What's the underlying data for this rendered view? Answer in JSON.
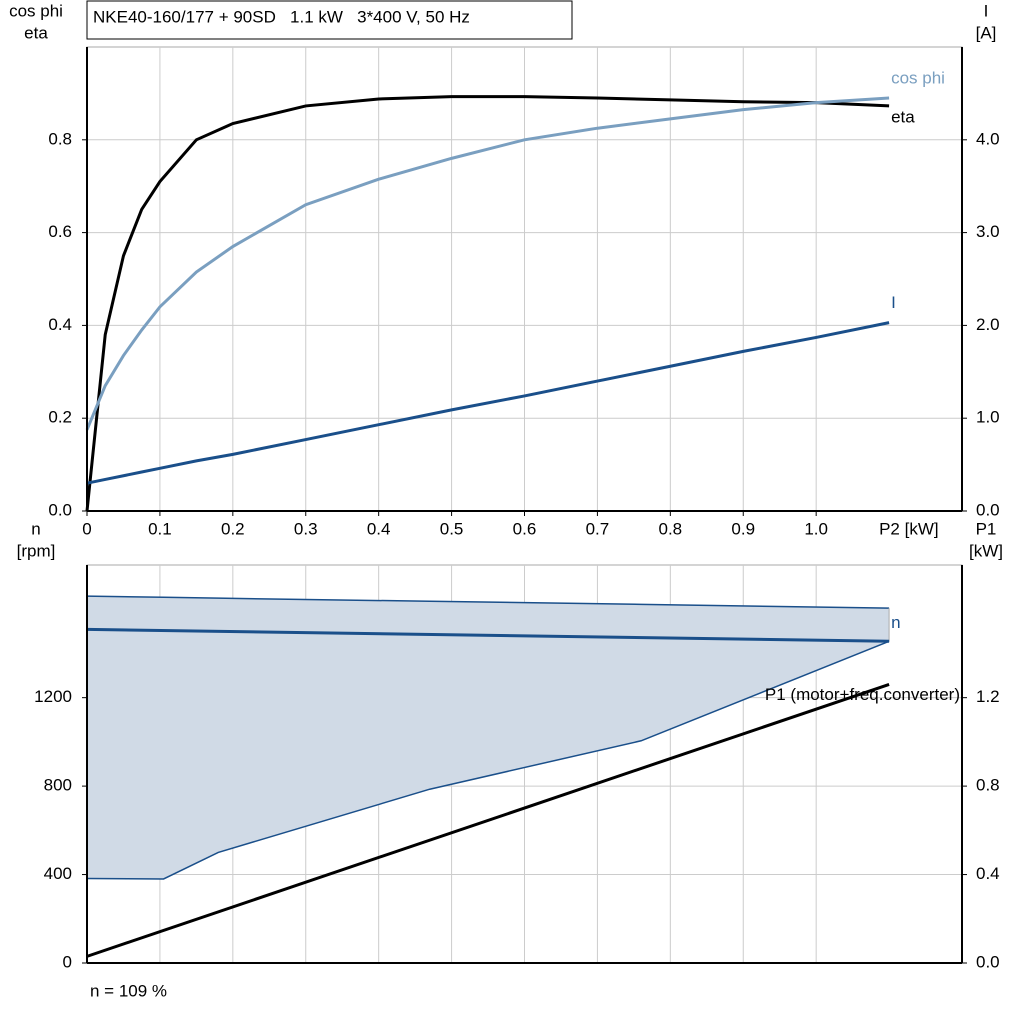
{
  "chart_data": [
    {
      "type": "line",
      "title": "NKE40-160/177 + 90SD   1.1 kW   3*400 V, 50 Hz",
      "ylabel": [
        "cos phi",
        "eta"
      ],
      "y2label": [
        "I",
        "[A]"
      ],
      "xlabel": "P2 [kW]",
      "x": [
        0,
        0.025,
        0.05,
        0.075,
        0.1,
        0.15,
        0.2,
        0.3,
        0.4,
        0.5,
        0.6,
        0.7,
        0.8,
        0.9,
        1.0,
        1.1
      ],
      "series": [
        {
          "name": "eta",
          "color": "#000000",
          "values": [
            0,
            0.38,
            0.55,
            0.65,
            0.71,
            0.8,
            0.835,
            0.873,
            0.888,
            0.893,
            0.893,
            0.89,
            0.886,
            0.882,
            0.88,
            0.873
          ]
        },
        {
          "name": "cos phi",
          "color": "#7a9fc0",
          "values": [
            0.175,
            0.27,
            0.335,
            0.39,
            0.44,
            0.515,
            0.57,
            0.66,
            0.715,
            0.76,
            0.8,
            0.825,
            0.845,
            0.865,
            0.88,
            0.89
          ]
        },
        {
          "name": "I",
          "color": "#1a4f8a",
          "axis": "y2",
          "values": [
            0.3,
            0.34,
            0.38,
            0.42,
            0.46,
            0.54,
            0.61,
            0.77,
            0.93,
            1.09,
            1.24,
            1.4,
            1.56,
            1.72,
            1.87,
            2.03
          ]
        }
      ],
      "xlim": [
        0,
        1.2
      ],
      "xticks": [
        0,
        0.1,
        0.2,
        0.3,
        0.4,
        0.5,
        0.6,
        0.7,
        0.8,
        0.9,
        {
          "value": 1,
          "label": "1.0"
        }
      ],
      "ylim": [
        0,
        1.0
      ],
      "yticks": [
        {
          "value": 0,
          "label": "0.0"
        },
        0.2,
        0.4,
        0.6,
        0.8
      ],
      "y2lim": [
        0,
        5.0
      ],
      "y2ticks": [
        {
          "value": 0,
          "label": "0.0"
        },
        {
          "value": 1,
          "label": "1.0"
        },
        {
          "value": 2,
          "label": "2.0"
        },
        {
          "value": 3,
          "label": "3.0"
        },
        {
          "value": 4,
          "label": "4.0"
        }
      ],
      "grid": true
    },
    {
      "type": "line",
      "ylabel": [
        "n",
        "[rpm]"
      ],
      "y2label": [
        "P1",
        "[kW]"
      ],
      "note": "n = 109 %",
      "band": {
        "color": "#d0dae6",
        "edge": "#1a4f8a",
        "x": [
          0,
          0.105,
          0.18,
          0.47,
          0.76,
          1.1
        ],
        "upper": [
          1659,
          1654,
          1650,
          1636,
          1622,
          1605
        ],
        "lower": [
          382,
          380,
          500,
          786,
          1005,
          1455
        ]
      },
      "series": [
        {
          "name": "n",
          "color": "#1a4f8a",
          "x": [
            0,
            1.1
          ],
          "values": [
            1509,
            1455
          ]
        },
        {
          "name": "P1 (motor+freq.converter)",
          "color": "#000000",
          "axis": "y2",
          "x": [
            0,
            1.1
          ],
          "values": [
            0.03,
            1.26
          ]
        }
      ],
      "xlim": [
        0,
        1.2
      ],
      "ylim": [
        0,
        1800
      ],
      "yticks": [
        0,
        400,
        800,
        1200
      ],
      "y2lim": [
        0,
        1.8
      ],
      "y2ticks": [
        {
          "value": 0,
          "label": "0.0"
        },
        {
          "value": 0.4,
          "label": "0.4"
        },
        {
          "value": 0.8,
          "label": "0.8"
        },
        {
          "value": 1.2,
          "label": "1.2"
        }
      ],
      "grid": true
    }
  ]
}
